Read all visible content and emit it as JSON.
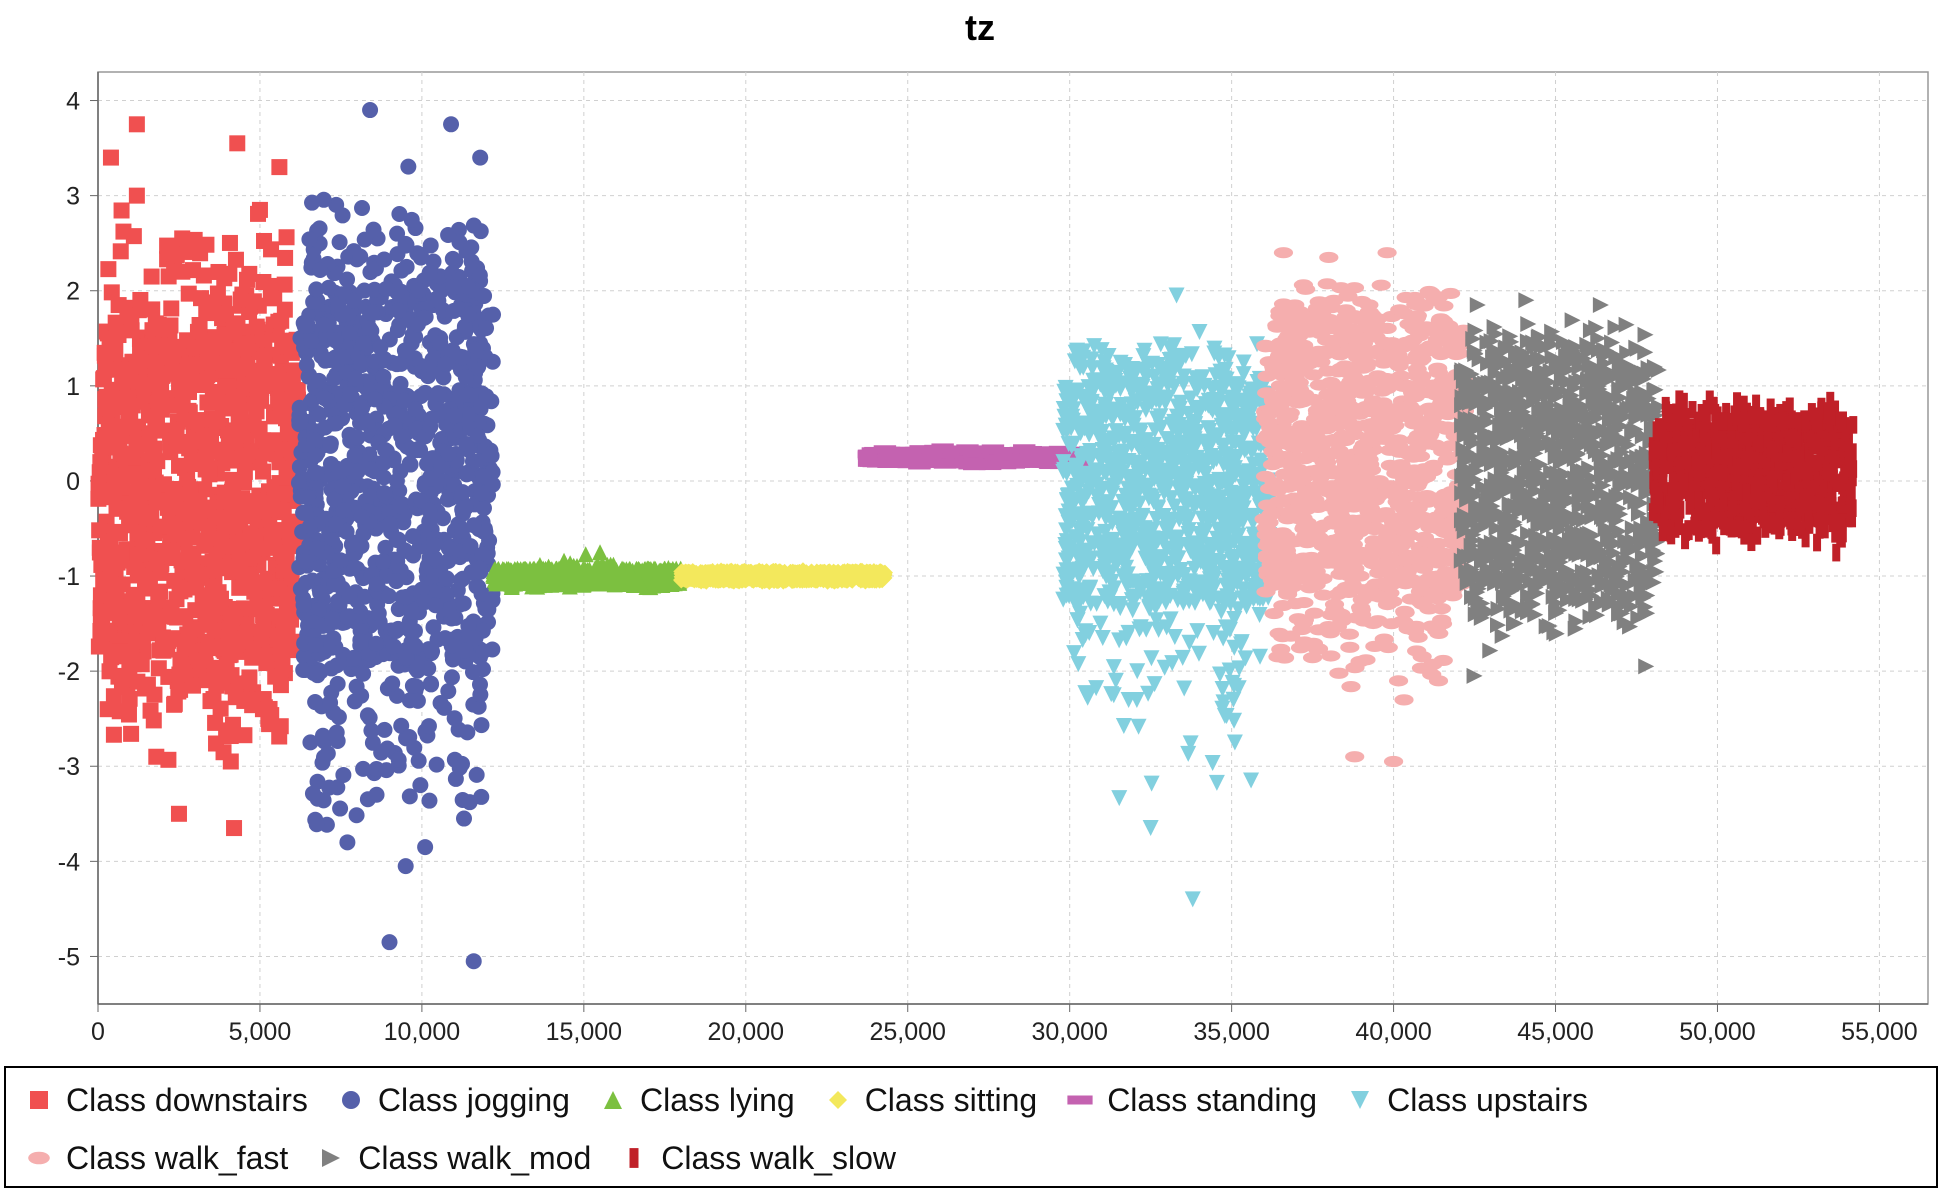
{
  "chart_data": {
    "type": "scatter",
    "title": "tz",
    "xlabel": "",
    "ylabel": "",
    "xlim": [
      0,
      56500
    ],
    "ylim": [
      -5.5,
      4.3
    ],
    "x_ticks": [
      0,
      5000,
      10000,
      15000,
      20000,
      25000,
      30000,
      35000,
      40000,
      45000,
      50000,
      55000
    ],
    "x_tick_labels": [
      "0",
      "5,000",
      "10,000",
      "15,000",
      "20,000",
      "25,000",
      "30,000",
      "35,000",
      "40,000",
      "45,000",
      "50,000",
      "55,000"
    ],
    "y_ticks": [
      4,
      3,
      2,
      1,
      0,
      -1,
      -2,
      -3,
      -4,
      -5
    ],
    "y_tick_labels": [
      "4",
      "3",
      "2",
      "1",
      "0",
      "-1",
      "-2",
      "-3",
      "-4",
      "-5"
    ],
    "grid": true,
    "legend_position": "bottom",
    "series": [
      {
        "name": "Class downstairs",
        "marker": "square",
        "color": "#f05050",
        "x_range": [
          0,
          6200
        ],
        "y_core": [
          -1.8,
          1.6
        ],
        "y_extent": [
          -3.7,
          3.8
        ],
        "outliers": [
          [
            1200,
            3.75
          ],
          [
            400,
            3.4
          ],
          [
            4300,
            3.55
          ],
          [
            5600,
            3.3
          ],
          [
            1200,
            3.0
          ],
          [
            5000,
            2.85
          ],
          [
            2600,
            2.55
          ],
          [
            800,
            -2.05
          ],
          [
            2500,
            -3.5
          ],
          [
            4200,
            -3.65
          ],
          [
            1800,
            -2.9
          ],
          [
            4100,
            -2.95
          ],
          [
            300,
            -2.4
          ]
        ]
      },
      {
        "name": "Class jogging",
        "marker": "circle",
        "color": "#5560aa",
        "x_range": [
          6200,
          12200
        ],
        "y_core": [
          -2.0,
          2.0
        ],
        "y_extent": [
          -5.1,
          3.9
        ],
        "outliers": [
          [
            8400,
            3.9
          ],
          [
            10900,
            3.75
          ],
          [
            11800,
            3.4
          ],
          [
            9000,
            -4.85
          ],
          [
            11600,
            -5.05
          ],
          [
            9500,
            -4.05
          ],
          [
            10100,
            -3.85
          ],
          [
            11300,
            -3.55
          ],
          [
            7700,
            -3.8
          ],
          [
            8600,
            -3.3
          ]
        ]
      },
      {
        "name": "Class lying",
        "marker": "triangle-up",
        "color": "#7cc040",
        "x_range": [
          12200,
          18000
        ],
        "y_core": [
          -1.08,
          -0.92
        ],
        "y_extent": [
          -1.15,
          -0.7
        ],
        "outliers": [
          [
            15500,
            -0.75
          ]
        ]
      },
      {
        "name": "Class sitting",
        "marker": "diamond",
        "color": "#f3e85c",
        "x_range": [
          18000,
          24300
        ],
        "y_core": [
          -1.05,
          -0.95
        ],
        "y_extent": [
          -1.08,
          -0.92
        ],
        "outliers": []
      },
      {
        "name": "Class standing",
        "marker": "bar",
        "color": "#c462b0",
        "x_range": [
          23800,
          30300
        ],
        "y_core": [
          0.18,
          0.32
        ],
        "y_extent": [
          0.12,
          0.38
        ],
        "outliers": []
      },
      {
        "name": "Class upstairs",
        "marker": "triangle-down",
        "color": "#82d0df",
        "x_range": [
          29800,
          36200
        ],
        "y_core": [
          -1.3,
          1.0
        ],
        "y_extent": [
          -4.4,
          1.95
        ],
        "outliers": [
          [
            33300,
            1.95
          ],
          [
            33800,
            -4.4
          ],
          [
            32500,
            -3.65
          ],
          [
            35600,
            -3.15
          ],
          [
            35100,
            -2.75
          ]
        ]
      },
      {
        "name": "Class walk_fast",
        "marker": "ellipse",
        "color": "#f5aeae",
        "x_range": [
          36000,
          42200
        ],
        "y_core": [
          -1.2,
          1.6
        ],
        "y_extent": [
          -2.95,
          2.4
        ],
        "outliers": [
          [
            36600,
            2.4
          ],
          [
            38000,
            2.35
          ],
          [
            39800,
            2.4
          ],
          [
            38800,
            -2.9
          ],
          [
            40000,
            -2.95
          ]
        ]
      },
      {
        "name": "Class walk_mod",
        "marker": "triangle-right",
        "color": "#808080",
        "x_range": [
          42100,
          48200
        ],
        "y_core": [
          -1.1,
          1.2
        ],
        "y_extent": [
          -2.1,
          1.95
        ],
        "outliers": [
          [
            42600,
            1.85
          ],
          [
            44100,
            1.9
          ],
          [
            46400,
            1.85
          ],
          [
            42500,
            -2.05
          ],
          [
            47800,
            -1.95
          ]
        ]
      },
      {
        "name": "Class walk_slow",
        "marker": "vbar",
        "color": "#c02028",
        "x_range": [
          48000,
          54200
        ],
        "y_core": [
          -0.4,
          0.6
        ],
        "y_extent": [
          -0.85,
          1.0
        ],
        "outliers": []
      }
    ]
  },
  "legend": {
    "row1": [
      "Class downstairs",
      "Class jogging",
      "Class lying",
      "Class sitting",
      "Class standing",
      "Class upstairs"
    ],
    "row2": [
      "Class walk_fast",
      "Class walk_mod",
      "Class walk_slow"
    ]
  }
}
